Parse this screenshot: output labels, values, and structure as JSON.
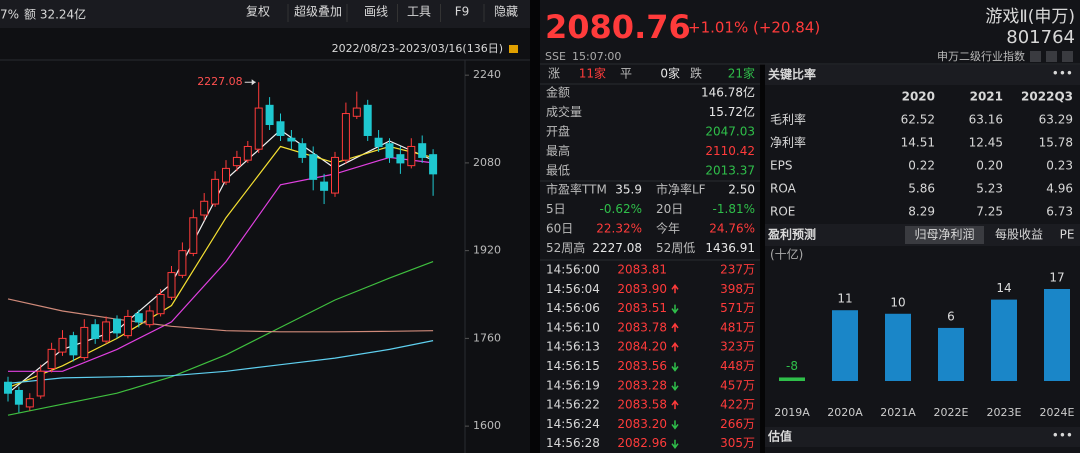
{
  "toolbar": {
    "change": "7%",
    "amount": "额 32.24亿",
    "buttons": [
      "复权",
      "超级叠加",
      "画线",
      "工具",
      "F9",
      "隐藏"
    ],
    "range": "2022/08/23-2023/03/16(136日)"
  },
  "chart_data": [
    {
      "type": "candlestick",
      "categories": [
        null,
        null,
        null,
        null,
        null,
        null,
        null,
        null,
        null,
        null,
        null,
        null,
        null,
        null,
        null,
        null,
        null,
        null,
        null,
        null,
        null,
        null,
        null,
        null,
        null,
        null,
        null,
        null,
        null,
        null,
        null,
        null,
        null,
        null,
        null,
        null,
        null,
        null,
        null,
        null
      ],
      "open": [
        1680,
        1665,
        1635,
        1655,
        1705,
        1735,
        1765,
        1725,
        1785,
        1755,
        1795,
        1765,
        1805,
        1785,
        1805,
        1835,
        1875,
        1915,
        1985,
        2005,
        2045,
        2075,
        2085,
        2105,
        2185,
        2155,
        2125,
        2115,
        2095,
        2045,
        2025,
        2085,
        2165,
        2185,
        2125,
        2115,
        2095,
        2075,
        2115,
        2095
      ],
      "high": [
        1690,
        1672,
        1660,
        1712,
        1752,
        1775,
        1772,
        1795,
        1795,
        1800,
        1802,
        1812,
        1812,
        1820,
        1850,
        1892,
        1935,
        1995,
        2025,
        2065,
        2085,
        2102,
        2120,
        2227.08,
        2200,
        2170,
        2140,
        2125,
        2110,
        2060,
        2100,
        2190,
        2210,
        2195,
        2140,
        2125,
        2110,
        2125,
        2130,
        2105
      ],
      "low": [
        1645,
        1625,
        1628,
        1650,
        1698,
        1728,
        1718,
        1720,
        1750,
        1750,
        1760,
        1760,
        1780,
        1780,
        1800,
        1830,
        1870,
        1910,
        1975,
        2000,
        2040,
        2065,
        2080,
        2098,
        2140,
        2120,
        2105,
        2080,
        2030,
        2005,
        2018,
        2078,
        2160,
        2120,
        2100,
        2080,
        2060,
        2070,
        2080,
        2020
      ],
      "close": [
        1660,
        1640,
        1650,
        1700,
        1740,
        1760,
        1730,
        1780,
        1760,
        1790,
        1770,
        1800,
        1790,
        1810,
        1840,
        1880,
        1920,
        1980,
        2010,
        2050,
        2070,
        2090,
        2110,
        2180,
        2150,
        2130,
        2120,
        2090,
        2050,
        2030,
        2090,
        2170,
        2180,
        2130,
        2110,
        2090,
        2080,
        2110,
        2090,
        2060
      ],
      "up_color": "#ff3b3b",
      "down_color": "#1fc8d0",
      "series": [
        {
          "color": "#f2f2f2",
          "x": [
            0,
            5,
            10,
            15,
            20,
            25,
            30,
            35,
            39
          ],
          "values": [
            1660,
            1740,
            1775,
            1860,
            2050,
            2140,
            2070,
            2120,
            2085
          ]
        },
        {
          "color": "#f5e032",
          "x": [
            0,
            5,
            10,
            15,
            20,
            25,
            30,
            35,
            39
          ],
          "values": [
            1670,
            1710,
            1760,
            1820,
            1980,
            2110,
            2080,
            2110,
            2090
          ]
        },
        {
          "color": "#e040e0",
          "x": [
            0,
            5,
            10,
            15,
            20,
            25,
            30,
            35,
            39
          ],
          "values": [
            1700,
            1700,
            1740,
            1790,
            1900,
            2040,
            2060,
            2090,
            2080
          ]
        },
        {
          "color": "#3fbf3f",
          "x": [
            0,
            5,
            10,
            15,
            20,
            25,
            30,
            35,
            39
          ],
          "values": [
            1620,
            1640,
            1660,
            1690,
            1730,
            1780,
            1830,
            1870,
            1900
          ]
        },
        {
          "color": "#5fd0f0",
          "x": [
            0,
            5,
            10,
            15,
            20,
            25,
            30,
            35,
            39
          ],
          "values": [
            1678,
            1688,
            1690,
            1692,
            1700,
            1712,
            1724,
            1740,
            1756
          ]
        },
        {
          "color": "#d08a7a",
          "x": [
            0,
            5,
            10,
            15,
            20,
            25,
            30,
            35,
            39
          ],
          "values": [
            1832,
            1810,
            1795,
            1782,
            1774,
            1772,
            1772,
            1773,
            1774
          ]
        }
      ],
      "ylim": [
        1551,
        2264
      ],
      "yticks": [
        1600,
        1760,
        1920,
        2080,
        2240
      ],
      "grid": false,
      "annotate_index": 23
    },
    {
      "type": "bar",
      "title": "盈利预测",
      "subtitle": "(十亿)",
      "categories": [
        "2019A",
        "2020A",
        "2021A",
        "2022E",
        "2023E",
        "2024E"
      ],
      "values": [
        -8,
        11,
        10,
        6,
        14,
        17
      ],
      "color": "#1a86c8",
      "negative_color": "#2fbf4a",
      "ylim": [
        -9,
        17
      ]
    }
  ],
  "quote": {
    "price": "2080.76",
    "change": "+1.01% (+20.84)",
    "exchange": "SSE",
    "time": "15:07:00",
    "name": "游戏Ⅱ(申万)",
    "code": "801764",
    "index_type": "申万二级行业指数"
  },
  "breadth": [
    {
      "label": "涨",
      "value": "11家",
      "tone": "up"
    },
    {
      "label": "平",
      "value": "0家",
      "tone": "flat"
    },
    {
      "label": "跌",
      "value": "21家",
      "tone": "down"
    }
  ],
  "stats": [
    {
      "label": "金额",
      "value": "146.78亿",
      "tone": "flat"
    },
    {
      "label": "成交量",
      "value": "15.72亿",
      "tone": "flat"
    },
    {
      "label": "开盘",
      "value": "2047.03",
      "tone": "down"
    },
    {
      "label": "最高",
      "value": "2110.42",
      "tone": "up"
    },
    {
      "label": "最低",
      "value": "2013.37",
      "tone": "down"
    }
  ],
  "stats_pairs": [
    [
      {
        "label": "市盈率TTM",
        "value": "35.9",
        "tone": "flat"
      },
      {
        "label": "市净率LF",
        "value": "2.50",
        "tone": "flat"
      }
    ],
    [
      {
        "label": "5日",
        "value": "-0.62%",
        "tone": "down"
      },
      {
        "label": "20日",
        "value": "-1.81%",
        "tone": "down"
      }
    ],
    [
      {
        "label": "60日",
        "value": "22.32%",
        "tone": "up"
      },
      {
        "label": "今年",
        "value": "24.76%",
        "tone": "up"
      }
    ],
    [
      {
        "label": "52周高",
        "value": "2227.08",
        "tone": "flat"
      },
      {
        "label": "52周低",
        "value": "1436.91",
        "tone": "flat"
      }
    ]
  ],
  "trades": [
    {
      "time": "14:56:00",
      "price": "2083.81",
      "dir": null,
      "volume": "237万"
    },
    {
      "time": "14:56:04",
      "price": "2083.90",
      "dir": "up",
      "volume": "398万"
    },
    {
      "time": "14:56:06",
      "price": "2083.51",
      "dir": "down",
      "volume": "571万"
    },
    {
      "time": "14:56:10",
      "price": "2083.78",
      "dir": "up",
      "volume": "481万"
    },
    {
      "time": "14:56:13",
      "price": "2084.20",
      "dir": "up",
      "volume": "323万"
    },
    {
      "time": "14:56:15",
      "price": "2083.56",
      "dir": "down",
      "volume": "448万"
    },
    {
      "time": "14:56:19",
      "price": "2083.28",
      "dir": "down",
      "volume": "457万"
    },
    {
      "time": "14:56:22",
      "price": "2083.58",
      "dir": "up",
      "volume": "422万"
    },
    {
      "time": "14:56:24",
      "price": "2083.20",
      "dir": "down",
      "volume": "266万"
    },
    {
      "time": "14:56:28",
      "price": "2082.96",
      "dir": "down",
      "volume": "305万"
    }
  ],
  "ratios": {
    "title": "关键比率",
    "columns": [
      "2020",
      "2021",
      "2022Q3"
    ],
    "rows": [
      {
        "label": "毛利率",
        "values": [
          "62.52",
          "63.16",
          "63.29"
        ]
      },
      {
        "label": "净利率",
        "values": [
          "14.51",
          "12.45",
          "15.78"
        ]
      },
      {
        "label": "EPS",
        "values": [
          "0.22",
          "0.20",
          "0.23"
        ]
      },
      {
        "label": "ROA",
        "values": [
          "5.86",
          "5.23",
          "4.96"
        ]
      },
      {
        "label": "ROE",
        "values": [
          "8.29",
          "7.25",
          "6.73"
        ]
      }
    ]
  },
  "forecast": {
    "tabs": [
      "归母净利润",
      "每股收益",
      "PE"
    ],
    "active": 0
  },
  "valuation": {
    "title": "估值"
  }
}
